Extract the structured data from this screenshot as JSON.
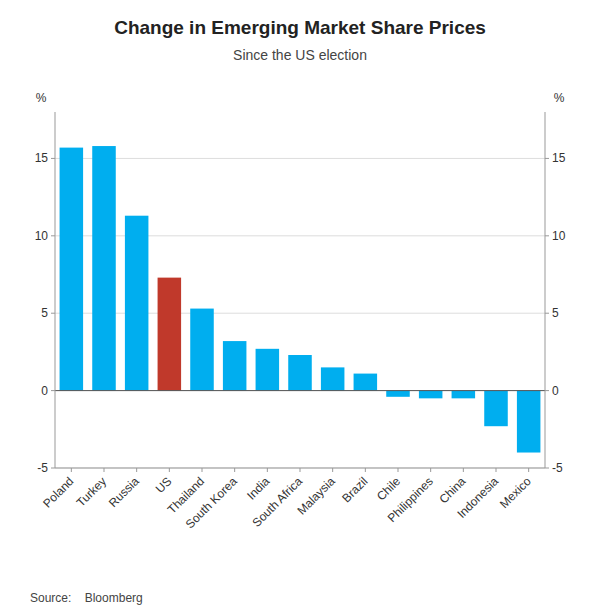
{
  "chart_data": {
    "type": "bar",
    "title": "Change in Emerging Market Share Prices",
    "subtitle": "Since the US election",
    "source": "Source:    Bloomberg",
    "categories": [
      "Poland",
      "Turkey",
      "Russia",
      "US",
      "Thailand",
      "South Korea",
      "India",
      "South Africa",
      "Malaysia",
      "Brazil",
      "Chile",
      "Philippines",
      "China",
      "Indonesia",
      "Mexico"
    ],
    "values": [
      15.7,
      15.8,
      11.3,
      7.3,
      5.3,
      3.2,
      2.7,
      2.3,
      1.5,
      1.1,
      -0.4,
      -0.5,
      -0.5,
      -2.3,
      -4.0
    ],
    "colors": [
      "#00AEEF",
      "#00AEEF",
      "#00AEEF",
      "#C0392B",
      "#00AEEF",
      "#00AEEF",
      "#00AEEF",
      "#00AEEF",
      "#00AEEF",
      "#00AEEF",
      "#00AEEF",
      "#00AEEF",
      "#00AEEF",
      "#00AEEF",
      "#00AEEF"
    ],
    "ylim": [
      -5,
      18
    ],
    "yticks": [
      -5,
      0,
      5,
      10,
      15
    ],
    "y2lim": [
      -5,
      18
    ],
    "y2ticks": [
      -5,
      0,
      5,
      10,
      15
    ],
    "ylabel": "%",
    "y2label": "%",
    "grid": true
  }
}
